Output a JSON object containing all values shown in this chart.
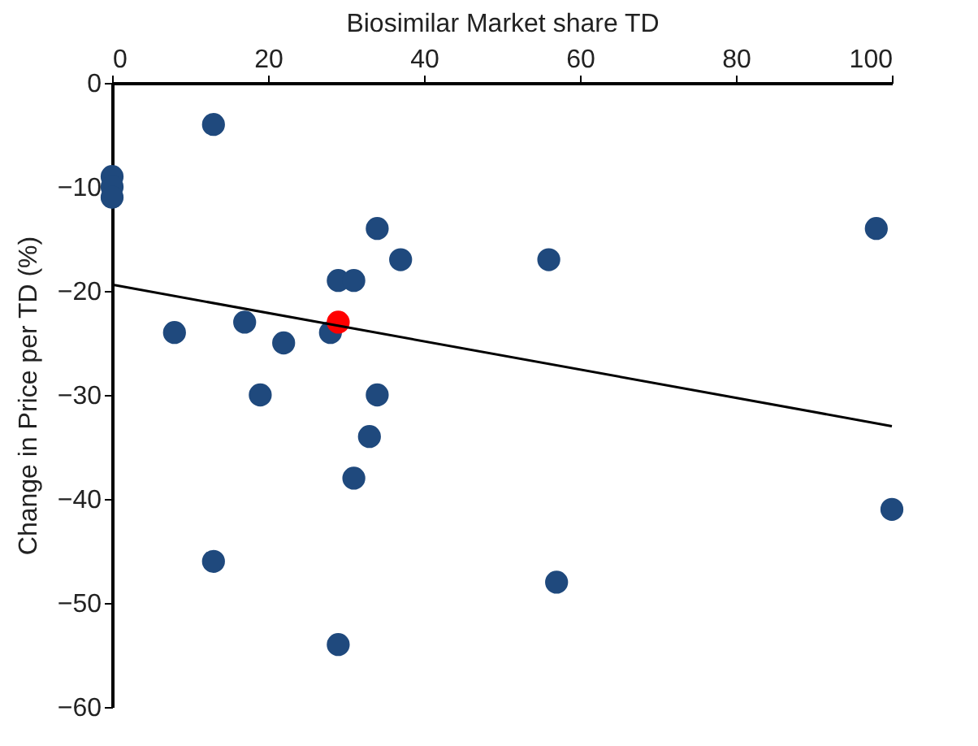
{
  "chart_data": {
    "type": "scatter",
    "xlabel": "Biosimilar Market share TD",
    "ylabel": "Change in Price per TD (%)",
    "xlim": [
      0,
      100
    ],
    "xticks": [
      0,
      20,
      40,
      60,
      80,
      100
    ],
    "ylim": [
      -60,
      0
    ],
    "yticks": [
      0,
      -10,
      -20,
      -30,
      -40,
      -50,
      -60
    ],
    "grid": false,
    "marker": "circle",
    "series": [
      {
        "color": "#1f497d",
        "x": [
          0,
          0,
          0,
          13,
          8,
          17,
          22,
          19,
          13,
          29,
          29,
          31,
          28,
          34,
          37,
          34,
          33,
          31,
          56,
          57,
          98,
          100
        ],
        "values": [
          -9,
          -10,
          -11,
          -4,
          -24,
          -23,
          -25,
          -30,
          -46,
          -54,
          -19,
          -19,
          -24,
          -14,
          -17,
          -30,
          -34,
          -38,
          -17,
          -48,
          -14,
          -41
        ]
      },
      {
        "color": "#ff0000",
        "x": [
          29
        ],
        "values": [
          -23
        ]
      },
      {
        "type": "line",
        "color": "#000000",
        "marker": "none",
        "x": [
          0,
          100
        ],
        "values": [
          -19.4,
          -33
        ]
      }
    ]
  }
}
